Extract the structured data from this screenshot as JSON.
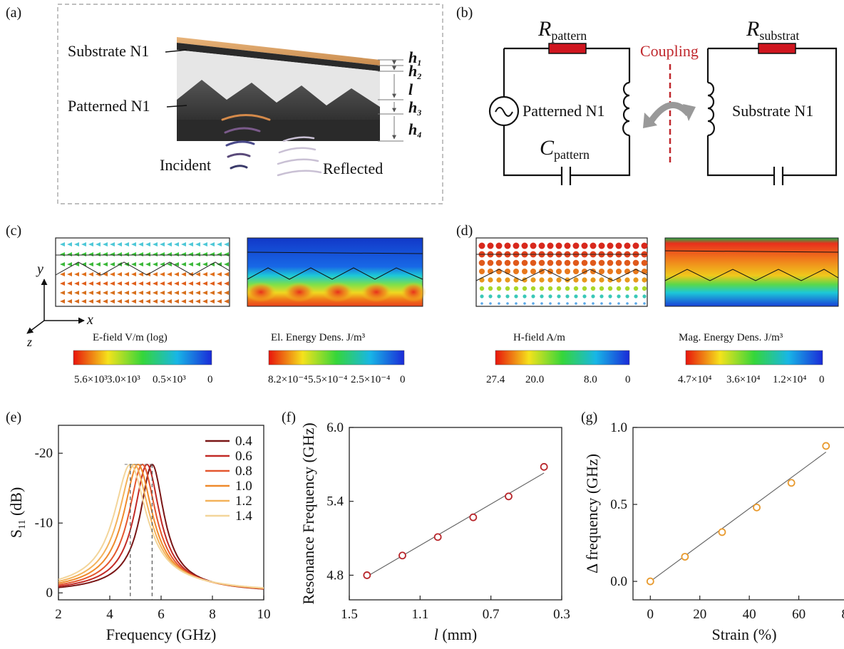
{
  "panels": {
    "a": "(a)",
    "b": "(b)",
    "c": "(c)",
    "d": "(d)",
    "e": "(e)",
    "f": "(f)",
    "g": "(g)"
  },
  "panel_a": {
    "substrate_label": "Substrate N1",
    "patterned_label": "Patterned N1",
    "incident_label": "Incident",
    "reflected_label": "Reflected",
    "dims": [
      {
        "base": "h",
        "sub": "1"
      },
      {
        "base": "h",
        "sub": "2"
      },
      {
        "base": "l",
        "sub": ""
      },
      {
        "base": "h",
        "sub": "3"
      },
      {
        "base": "h",
        "sub": "4"
      }
    ]
  },
  "panel_b": {
    "r_pattern": {
      "base": "R",
      "sub": "pattern"
    },
    "r_substrate": {
      "base": "R",
      "sub": "substrat"
    },
    "c_pattern": {
      "base": "C",
      "sub": "pattern"
    },
    "coupling": "Coupling",
    "left_label": "Patterned N1",
    "right_label": "Substrate N1",
    "resistor_color": "#d0161f",
    "coupling_color": "#c0282d"
  },
  "panel_c": {
    "axis_x": "x",
    "axis_y": "y",
    "axis_z": "z",
    "colorbars": [
      {
        "title": "E-field  V/m (log)",
        "ticks": [
          "5.6×10³",
          "3.0×10³",
          "0.5×10³",
          "0"
        ]
      },
      {
        "title": "El. Energy Dens.  J/m³",
        "ticks": [
          "8.2×10⁻⁴",
          "5.5×10⁻⁴",
          "2.5×10⁻⁴",
          "0"
        ]
      }
    ]
  },
  "panel_d": {
    "colorbars": [
      {
        "title": "H-field  A/m",
        "ticks": [
          "27.4",
          "20.0",
          "8.0",
          "0"
        ]
      },
      {
        "title": "Mag. Energy Dens.  J/m³",
        "ticks": [
          "4.7×10⁴",
          "3.6×10⁴",
          "1.2×10⁴",
          "0"
        ]
      }
    ]
  },
  "chart_data": [
    {
      "id": "e",
      "type": "line",
      "xlabel": "Frequency (GHz)",
      "ylabel_base": "S",
      "ylabel_sub": "11",
      "ylabel_unit": " (dB)",
      "xlim": [
        2,
        10
      ],
      "ylim": [
        1,
        -24
      ],
      "xticks": [
        2,
        4,
        6,
        8,
        10
      ],
      "yticks": [
        0,
        -10,
        -20
      ],
      "ytick_labels": [
        "0",
        "-10",
        "-20"
      ],
      "peak_value": -18.4,
      "series": [
        {
          "name": "0.4",
          "peak": 5.65,
          "color": "#7a1616"
        },
        {
          "name": "0.6",
          "peak": 5.45,
          "color": "#c22a26"
        },
        {
          "name": "0.8",
          "peak": 5.27,
          "color": "#e4572e"
        },
        {
          "name": "1.0",
          "peak": 5.1,
          "color": "#ef8a2c"
        },
        {
          "name": "1.2",
          "peak": 4.95,
          "color": "#f3b25a"
        },
        {
          "name": "1.4",
          "peak": 4.8,
          "color": "#f3d59a"
        }
      ],
      "dashed_markers": [
        4.8,
        5.65
      ]
    },
    {
      "id": "f",
      "type": "scatter",
      "xlabel_italic": "l",
      "xlabel_rest": " (mm)",
      "ylabel": "Resonance Frequency (GHz)",
      "xlim": [
        1.5,
        0.3
      ],
      "ylim": [
        4.6,
        6.0
      ],
      "xticks": [
        1.5,
        1.1,
        0.7,
        0.3
      ],
      "xtick_labels": [
        "1.5",
        "1.1",
        "0.7",
        "0.3"
      ],
      "yticks": [
        4.8,
        5.4,
        6.0
      ],
      "ytick_labels": [
        "4.8",
        "5.4",
        "6.0"
      ],
      "x": [
        1.4,
        1.2,
        1.0,
        0.8,
        0.6,
        0.4
      ],
      "y": [
        4.8,
        4.96,
        5.11,
        5.27,
        5.44,
        5.68
      ],
      "fit": [
        [
          1.4,
          4.79
        ],
        [
          0.4,
          5.63
        ]
      ],
      "marker_color": "#b8262b"
    },
    {
      "id": "g",
      "type": "scatter",
      "xlabel": "Strain (%)",
      "ylabel": "Δ frequency (GHz)",
      "xlim": [
        -7,
        80
      ],
      "ylim": [
        -0.12,
        1.0
      ],
      "xticks": [
        0,
        20,
        40,
        60,
        80
      ],
      "xtick_labels": [
        "0",
        "20",
        "40",
        "60",
        "80"
      ],
      "yticks": [
        0.0,
        0.5,
        1.0
      ],
      "ytick_labels": [
        "0.0",
        "0.5",
        "1.0"
      ],
      "x": [
        0,
        14,
        29,
        43,
        57,
        71
      ],
      "y": [
        0.0,
        0.16,
        0.32,
        0.48,
        0.64,
        0.88
      ],
      "fit": [
        [
          0,
          0.0
        ],
        [
          71,
          0.84
        ]
      ],
      "marker_color": "#e89a2e"
    }
  ]
}
